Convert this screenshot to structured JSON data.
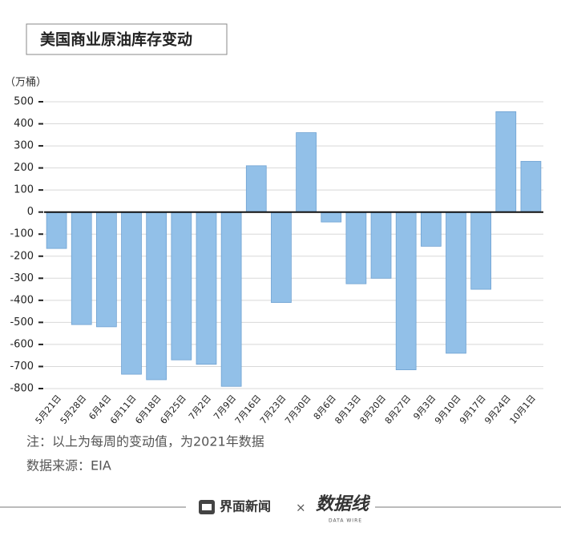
{
  "chart_data": {
    "type": "bar",
    "title": "美国商业原油库存变动",
    "y_unit": "（万桶）",
    "categories": [
      "5月21日",
      "5月28日",
      "6月4日",
      "6月11日",
      "6月18日",
      "6月25日",
      "7月2日",
      "7月9日",
      "7月16日",
      "7月23日",
      "7月30日",
      "8月6日",
      "8月13日",
      "8月20日",
      "8月27日",
      "9月3日",
      "9月10日",
      "9月17日",
      "9月24日",
      "10月1日"
    ],
    "values": [
      -165,
      -510,
      -520,
      -735,
      -760,
      -670,
      -690,
      -790,
      210,
      -410,
      360,
      -45,
      -325,
      -300,
      -715,
      -155,
      -640,
      -350,
      455,
      230
    ],
    "color": "#92c0e8",
    "ylim": [
      -800,
      500
    ],
    "yticks": [
      -800,
      -700,
      -600,
      -500,
      -400,
      -300,
      -200,
      -100,
      0,
      100,
      200,
      300,
      400,
      500
    ],
    "grid": true,
    "note": "注：以上为每周的变动值，为2021年数据",
    "source": "数据来源：EIA"
  },
  "footer": {
    "brand": "界面新闻",
    "separator": "×",
    "partner": "数据线",
    "partner_sub": "DATA WIRE"
  }
}
